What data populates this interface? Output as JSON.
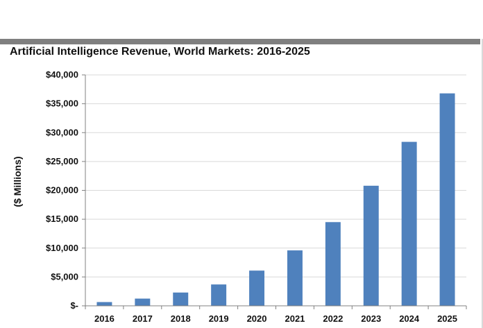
{
  "chart_data": {
    "type": "bar",
    "title": "Artificial Intelligence Revenue, World Markets: 2016-2025",
    "xlabel": "",
    "ylabel": "($ Millions)",
    "categories": [
      "2016",
      "2017",
      "2018",
      "2019",
      "2020",
      "2021",
      "2022",
      "2023",
      "2024",
      "2025"
    ],
    "values": [
      650,
      1250,
      2300,
      3700,
      6100,
      9600,
      14500,
      20800,
      28400,
      36800
    ],
    "ylim": [
      0,
      40000
    ],
    "yticks": [
      0,
      5000,
      10000,
      15000,
      20000,
      25000,
      30000,
      35000,
      40000
    ],
    "ytick_labels": [
      "$-",
      "$5,000",
      "$10,000",
      "$15,000",
      "$20,000",
      "$25,000",
      "$30,000",
      "$35,000",
      "$40,000"
    ],
    "grid": true,
    "legend": "none",
    "colors": {
      "bar": "#4f81bd",
      "grid": "#d9d9d9",
      "axis": "#808080",
      "divider": "#7f7f7f"
    }
  }
}
